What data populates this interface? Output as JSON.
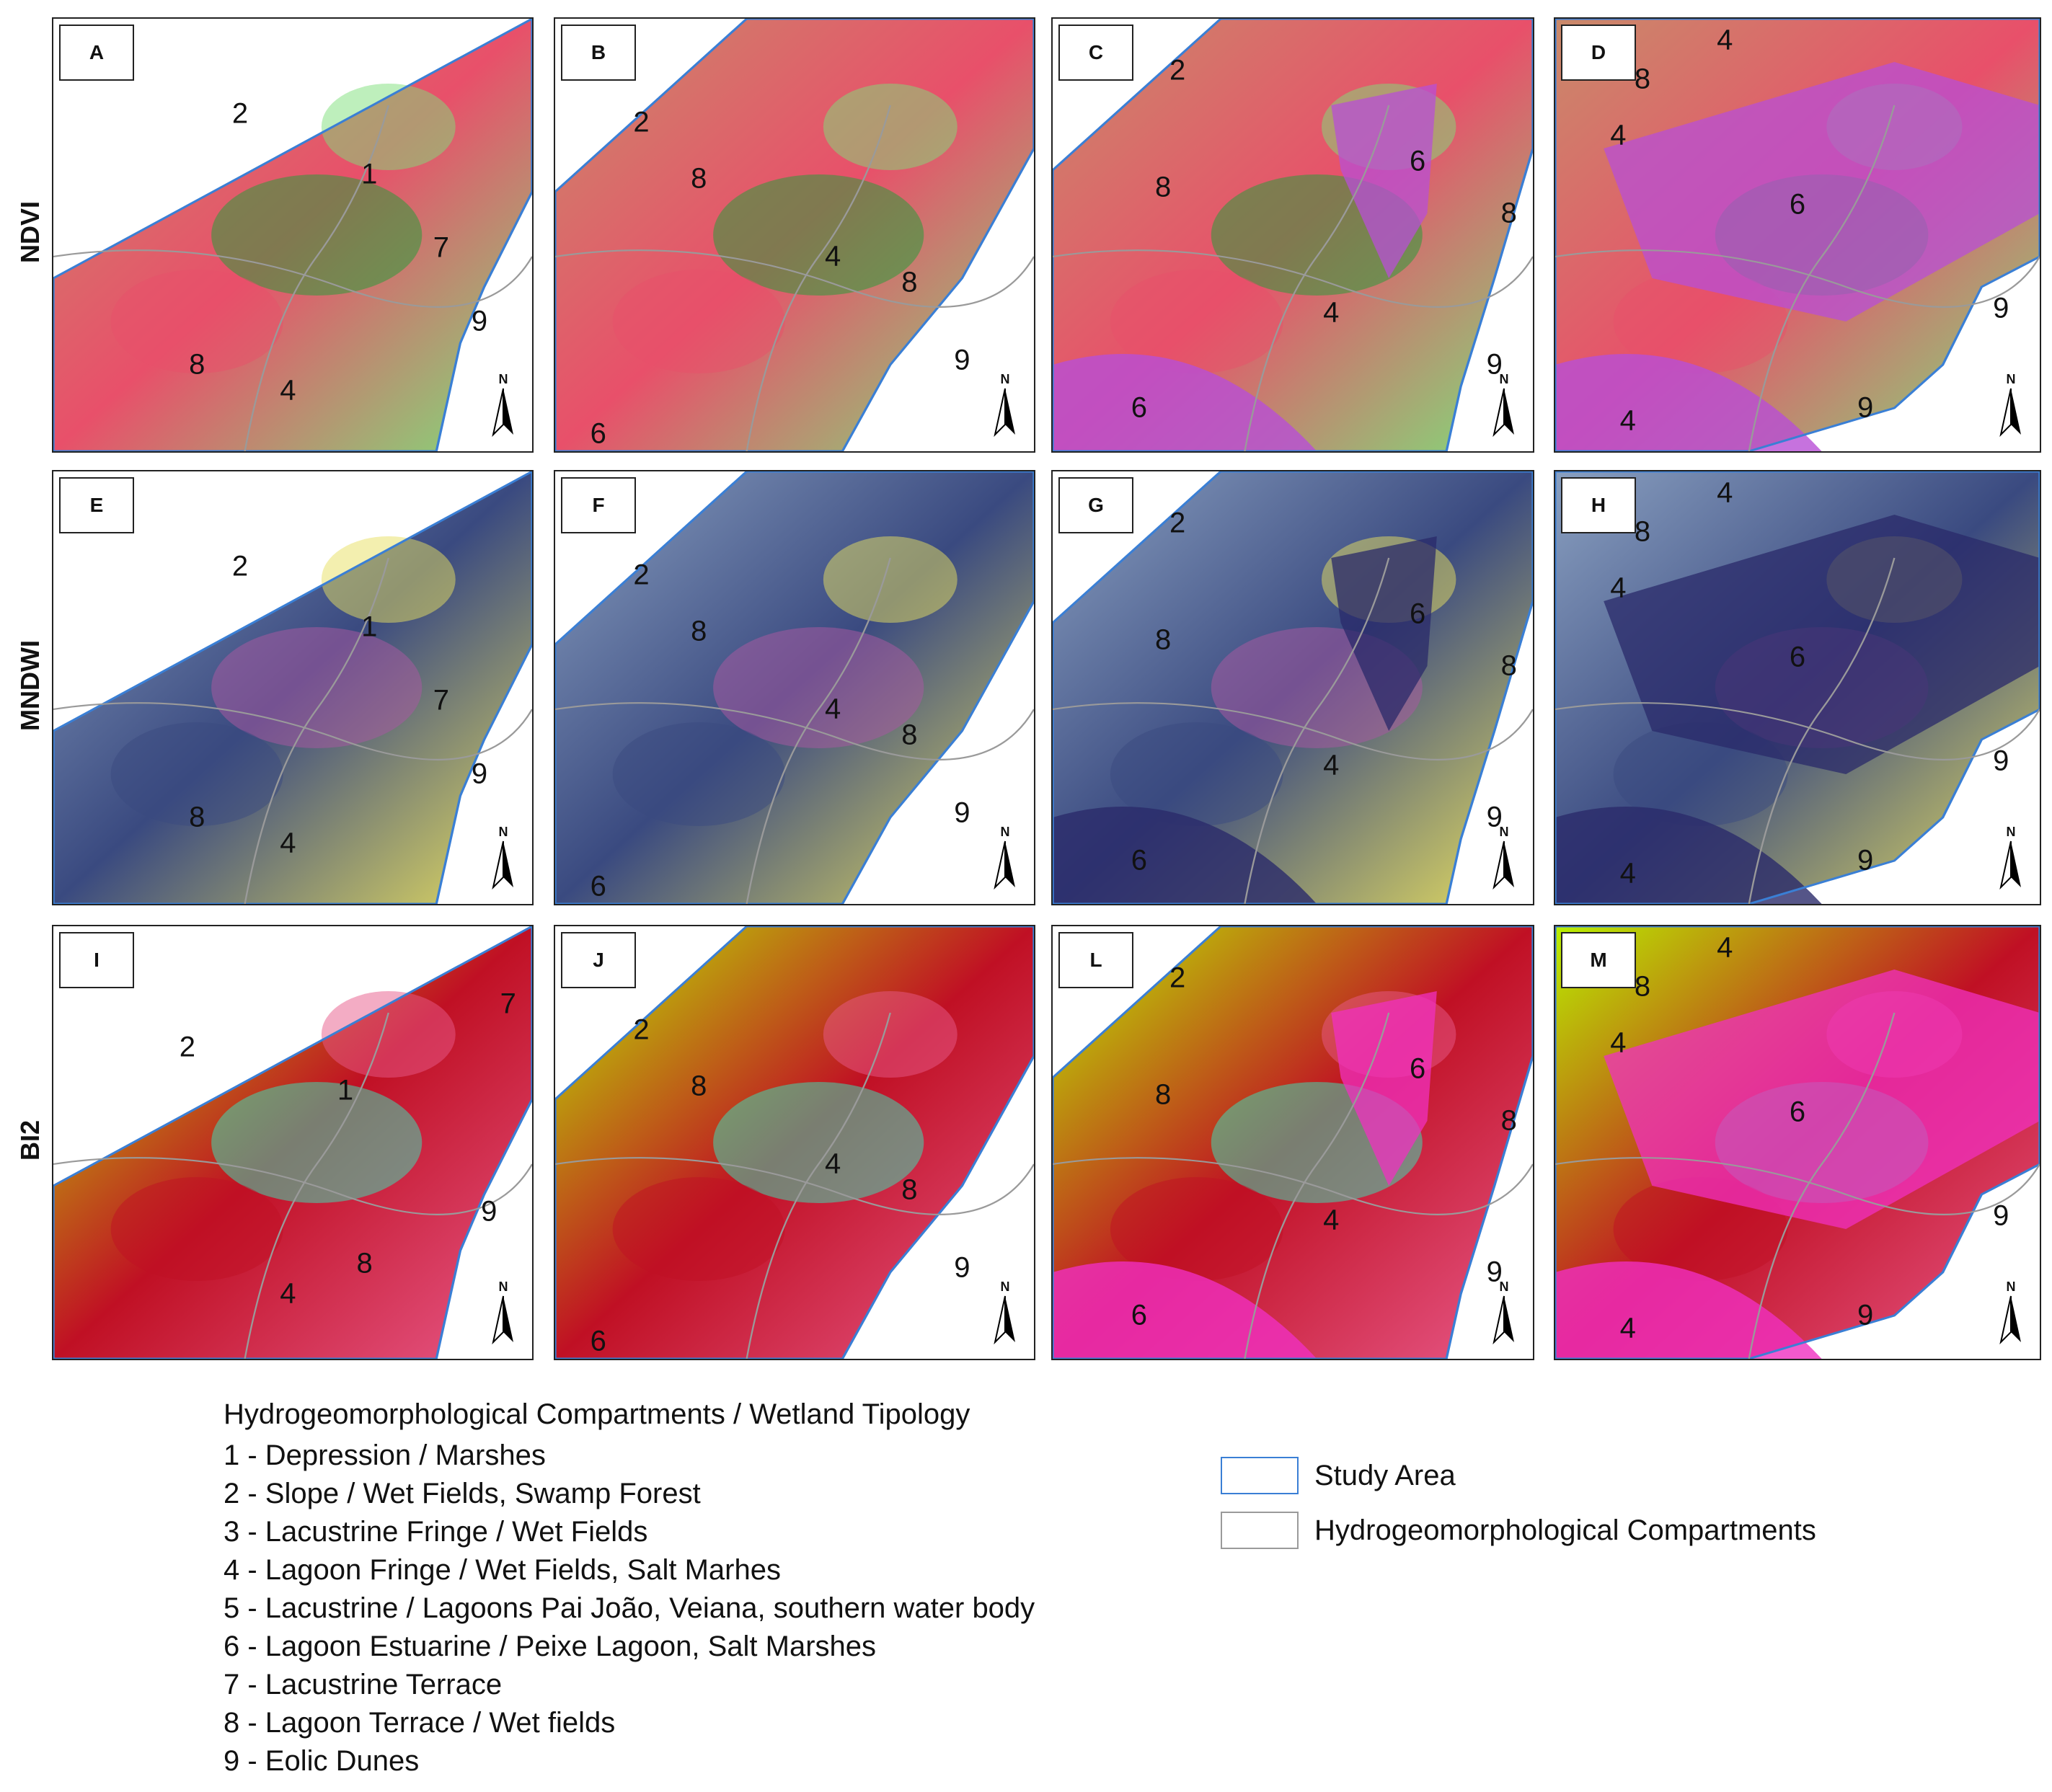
{
  "rows": [
    {
      "label": "NDVI",
      "panels": [
        {
          "letter": "A",
          "zones": [
            "2",
            "1",
            "7",
            "9",
            "8",
            "4"
          ]
        },
        {
          "letter": "B",
          "zones": [
            "2",
            "8",
            "4",
            "8",
            "9",
            "6"
          ]
        },
        {
          "letter": "C",
          "zones": [
            "2",
            "8",
            "6",
            "8",
            "4",
            "9",
            "6"
          ]
        },
        {
          "letter": "D",
          "zones": [
            "4",
            "8",
            "4",
            "6",
            "9",
            "4",
            "9"
          ]
        }
      ]
    },
    {
      "label": "MNDWI",
      "panels": [
        {
          "letter": "E",
          "zones": [
            "2",
            "1",
            "7",
            "9",
            "8",
            "4"
          ]
        },
        {
          "letter": "F",
          "zones": [
            "2",
            "8",
            "4",
            "8",
            "9",
            "6"
          ]
        },
        {
          "letter": "G",
          "zones": [
            "2",
            "8",
            "6",
            "8",
            "4",
            "9",
            "6"
          ]
        },
        {
          "letter": "H",
          "zones": [
            "4",
            "8",
            "4",
            "6",
            "9",
            "4",
            "9"
          ]
        }
      ]
    },
    {
      "label": "BI2",
      "panels": [
        {
          "letter": "I",
          "zones": [
            "7",
            "2",
            "1",
            "9",
            "8",
            "4"
          ]
        },
        {
          "letter": "J",
          "zones": [
            "2",
            "8",
            "4",
            "8",
            "9",
            "6"
          ]
        },
        {
          "letter": "L",
          "zones": [
            "2",
            "8",
            "6",
            "8",
            "4",
            "9",
            "6"
          ]
        },
        {
          "letter": "M",
          "zones": [
            "4",
            "8",
            "4",
            "6",
            "9",
            "4",
            "9"
          ]
        }
      ]
    }
  ],
  "north_label": "N",
  "legend": {
    "title": "Hydrogeomorphological Compartments / Wetland Tipology",
    "items": [
      "1 - Depression / Marshes",
      "2 - Slope / Wet Fields, Swamp Forest",
      "3 - Lacustrine Fringe / Wet Fields",
      "4 - Lagoon Fringe / Wet Fields, Salt Marhes",
      "5 - Lacustrine / Lagoons Pai João, Veiana, southern water body",
      "6 - Lagoon Estuarine / Peixe Lagoon, Salt Marshes",
      "7 - Lacustrine Terrace",
      "8 - Lagoon Terrace / Wet fields",
      "9 - Eolic Dunes"
    ],
    "keys": [
      {
        "label": "Study Area",
        "color": "#3a7fd5"
      },
      {
        "label": "Hydrogeomorphological Compartments",
        "color": "#9a9a9a"
      }
    ]
  },
  "colors": {
    "ndvi": [
      "#c98a6a",
      "#e8506a",
      "#7ee07a",
      "#2b9a3a",
      "#b84fd6"
    ],
    "mndwi": [
      "#8aa0c0",
      "#3a4a80",
      "#e8e060",
      "#a55aa0",
      "#2a2a6a"
    ],
    "bi2": [
      "#b9f000",
      "#c01024",
      "#e85a8a",
      "#40d8b0",
      "#f030c0"
    ],
    "study_area_line": "#3a7fd5",
    "compartment_line": "#9a9a9a"
  }
}
